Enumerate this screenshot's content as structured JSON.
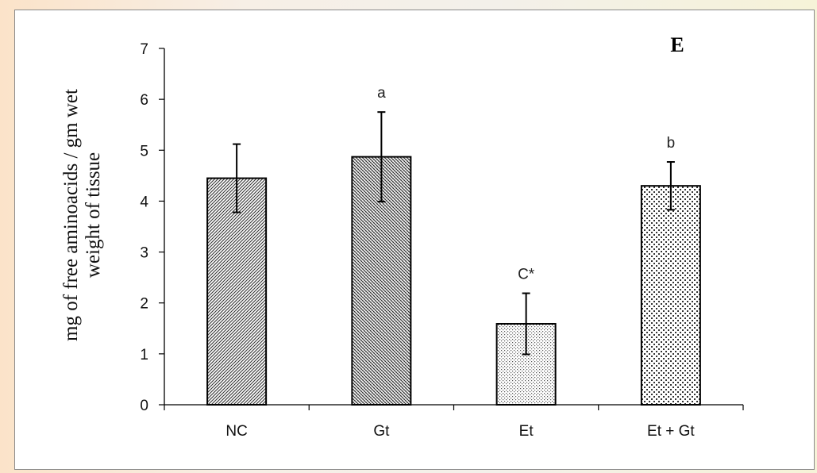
{
  "chart_data": {
    "type": "bar",
    "panel_label": "E",
    "ylabel_line1": "mg of free aminoacids / gm wet",
    "ylabel_line2": "weight of tissue",
    "categories": [
      "NC",
      "Gt",
      "Et",
      "Et + Gt"
    ],
    "values": [
      4.45,
      4.87,
      1.59,
      4.3
    ],
    "errors": [
      0.67,
      0.88,
      0.6,
      0.47
    ],
    "annotations": [
      "",
      "a",
      "C*",
      "b"
    ],
    "patterns": [
      "diag-dense",
      "diag-hatch",
      "dots-fine",
      "dots-coarse"
    ],
    "ylim": [
      0,
      7
    ],
    "yticks": [
      "0",
      "1",
      "2",
      "3",
      "4",
      "5",
      "6",
      "7"
    ],
    "grid": false,
    "legend": "none"
  }
}
